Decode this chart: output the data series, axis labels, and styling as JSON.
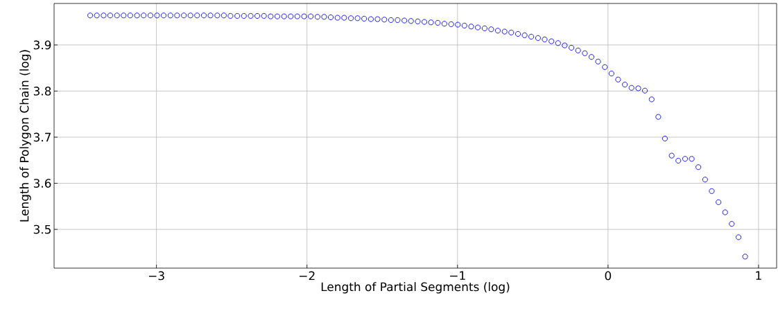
{
  "chart_data": {
    "type": "scatter",
    "xlabel": "Length of Partial Segments (log)",
    "ylabel": "Length of Polygon Chain (log)",
    "x": [
      -3.44,
      -3.396,
      -3.351,
      -3.307,
      -3.262,
      -3.218,
      -3.174,
      -3.129,
      -3.085,
      -3.04,
      -2.996,
      -2.952,
      -2.907,
      -2.863,
      -2.818,
      -2.774,
      -2.73,
      -2.685,
      -2.641,
      -2.596,
      -2.552,
      -2.508,
      -2.463,
      -2.419,
      -2.374,
      -2.33,
      -2.286,
      -2.241,
      -2.197,
      -2.152,
      -2.108,
      -2.064,
      -2.019,
      -1.975,
      -1.93,
      -1.886,
      -1.842,
      -1.797,
      -1.753,
      -1.708,
      -1.664,
      -1.62,
      -1.575,
      -1.531,
      -1.486,
      -1.442,
      -1.398,
      -1.353,
      -1.309,
      -1.264,
      -1.22,
      -1.176,
      -1.131,
      -1.087,
      -1.042,
      -0.998,
      -0.954,
      -0.909,
      -0.865,
      -0.82,
      -0.776,
      -0.732,
      -0.687,
      -0.643,
      -0.598,
      -0.554,
      -0.51,
      -0.465,
      -0.421,
      -0.376,
      -0.332,
      -0.288,
      -0.243,
      -0.199,
      -0.154,
      -0.11,
      -0.066,
      -0.021,
      0.023,
      0.067,
      0.112,
      0.156,
      0.201,
      0.245,
      0.29,
      0.334,
      0.378,
      0.423,
      0.467,
      0.512,
      0.556,
      0.6,
      0.645,
      0.689,
      0.734,
      0.778,
      0.822,
      0.867,
      0.911
    ],
    "series": [
      {
        "color": "#0000ff",
        "values": [
          3.964,
          3.964,
          3.964,
          3.964,
          3.964,
          3.964,
          3.964,
          3.964,
          3.964,
          3.964,
          3.964,
          3.964,
          3.964,
          3.964,
          3.964,
          3.964,
          3.964,
          3.964,
          3.964,
          3.964,
          3.964,
          3.963,
          3.963,
          3.963,
          3.963,
          3.963,
          3.963,
          3.962,
          3.962,
          3.962,
          3.962,
          3.962,
          3.962,
          3.962,
          3.961,
          3.961,
          3.96,
          3.959,
          3.959,
          3.958,
          3.958,
          3.957,
          3.956,
          3.956,
          3.955,
          3.954,
          3.954,
          3.953,
          3.952,
          3.951,
          3.95,
          3.949,
          3.948,
          3.946,
          3.945,
          3.944,
          3.942,
          3.94,
          3.938,
          3.936,
          3.934,
          3.931,
          3.929,
          3.927,
          3.924,
          3.921,
          3.918,
          3.915,
          3.912,
          3.908,
          3.904,
          3.899,
          3.894,
          3.888,
          3.882,
          3.874,
          3.864,
          3.852,
          3.838,
          3.825,
          3.814,
          3.807,
          3.806,
          3.801,
          3.782,
          3.744,
          3.697,
          3.66,
          3.649,
          3.653,
          3.653,
          3.635,
          3.608,
          3.583,
          3.559,
          3.537,
          3.512,
          3.483,
          3.441
        ]
      }
    ],
    "xlim": [
      -3.68,
      1.12
    ],
    "ylim": [
      3.416,
      3.99
    ],
    "xticks": [
      {
        "value": -3,
        "label": "−3"
      },
      {
        "value": -2,
        "label": "−2"
      },
      {
        "value": -1,
        "label": "−1"
      },
      {
        "value": 0,
        "label": "0"
      },
      {
        "value": 1,
        "label": "1"
      }
    ],
    "yticks": [
      3.5,
      3.6,
      3.7,
      3.8,
      3.9
    ],
    "grid": true,
    "marker": "circle"
  }
}
